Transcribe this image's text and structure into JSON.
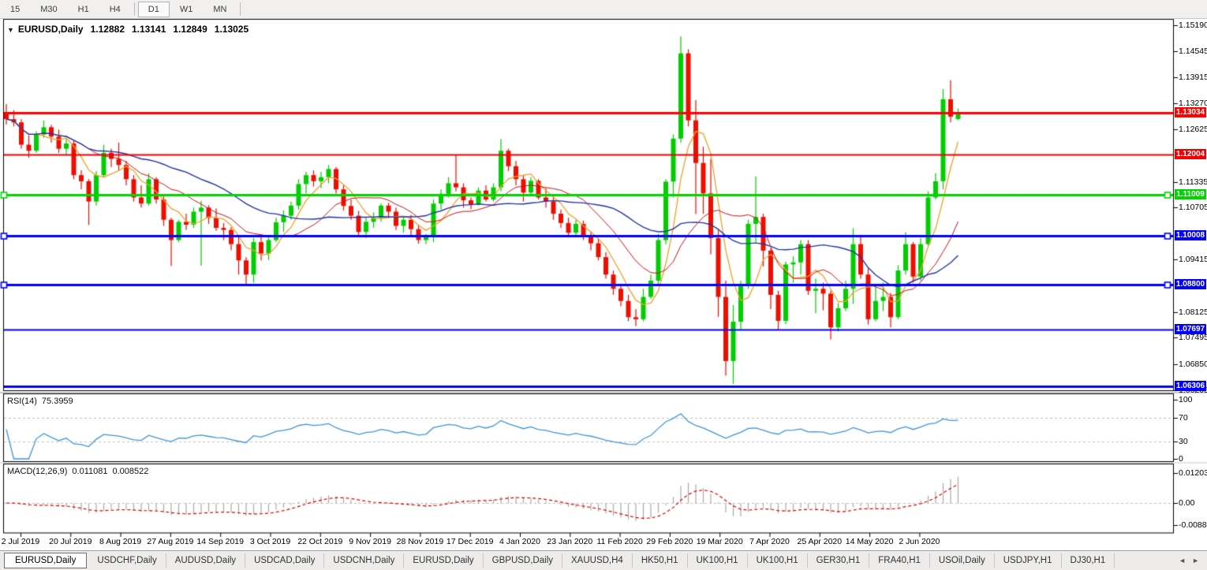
{
  "toolbar": {
    "groups": [
      [
        "15",
        "M30",
        "H1",
        "H4"
      ],
      [
        "D1",
        "W1",
        "MN"
      ]
    ],
    "active": "D1"
  },
  "window": {
    "collapse_glyph": "▼"
  },
  "tabs": {
    "items": [
      "EURUSD,Daily",
      "USDCHF,Daily",
      "AUDUSD,Daily",
      "USDCAD,Daily",
      "USDCNH,Daily",
      "EURUSD,Daily",
      "GBPUSD,Daily",
      "XAUUSD,H4",
      "HK50,H1",
      "UK100,H1",
      "UK100,H1",
      "GER30,H1",
      "FRA40,H1",
      "USOil,Daily",
      "USDJPY,H1",
      "DJ30,H1"
    ],
    "active_index": 0,
    "nav_left": "◄",
    "nav_right": "►"
  },
  "chart_data": {
    "type": "candlestick",
    "title": "EURUSD,Daily",
    "current_bar": {
      "open": "1.12882",
      "high": "1.13141",
      "low": "1.12849",
      "close": "1.13025"
    },
    "ylim": [
      1.062,
      1.1531
    ],
    "price_axis_ticks": [
      "1.15190",
      "1.14545",
      "1.13915",
      "1.13270",
      "1.12625",
      "1.11335",
      "1.10705",
      "1.09415",
      "1.08125",
      "1.07495",
      "1.06850",
      "1.06205"
    ],
    "x_axis_dates": [
      "2 Jul 2019",
      "20 Jul 2019",
      "8 Aug 2019",
      "27 Aug 2019",
      "14 Sep 2019",
      "3 Oct 2019",
      "22 Oct 2019",
      "9 Nov 2019",
      "28 Nov 2019",
      "17 Dec 2019",
      "4 Jan 2020",
      "23 Jan 2020",
      "11 Feb 2020",
      "29 Feb 2020",
      "19 Mar 2020",
      "7 Apr 2020",
      "25 Apr 2020",
      "14 May 2020",
      "2 Jun 2020"
    ],
    "horizontal_levels": [
      {
        "label": "1.13034",
        "color": "#FF0000",
        "width": 3,
        "handles": false
      },
      {
        "label": "1.12004",
        "color": "#F20000",
        "width": 2,
        "handles": false
      },
      {
        "label": "1.11009",
        "color": "#00D500",
        "width": 3,
        "handles": true
      },
      {
        "label": "1.10008",
        "color": "#0000FF",
        "width": 3,
        "handles": true
      },
      {
        "label": "1.08800",
        "color": "#0000FF",
        "width": 3,
        "handles": true
      },
      {
        "label": "1.07697",
        "color": "#0000FF",
        "width": 2,
        "handles": false
      },
      {
        "label": "1.06306",
        "color": "#0000FF",
        "width": 3,
        "handles": false
      }
    ],
    "moving_averages": [
      {
        "period": 5,
        "color": "#F0A029",
        "width": 1.3
      },
      {
        "period": 12,
        "color": "#CC1111",
        "width": 1
      },
      {
        "period": 25,
        "color": "#2233AA",
        "width": 1.4
      }
    ],
    "indicators": {
      "rsi": {
        "label": "RSI(14)",
        "value": "75.3959",
        "axis_ticks": [
          "100",
          "70",
          "30",
          "0"
        ],
        "upper_level": 70,
        "lower_level": 30,
        "color": "#3E95D8"
      },
      "macd": {
        "label": "MACD(12,26,9)",
        "value_main": "0.011081",
        "value_signal": "0.008522",
        "axis_ticks": [
          "0.012031",
          "0.00",
          "-0.00888"
        ],
        "hist_color": "#A9A9A9",
        "signal_color": "#DD0000"
      }
    },
    "colors": {
      "bull": "#00CE00",
      "bear": "#EE0E00",
      "grid": "#BFBFBF",
      "border": "#000000"
    },
    "candles_ohlc": [
      [
        1.13,
        1.1325,
        1.1275,
        1.1288
      ],
      [
        1.1288,
        1.131,
        1.127,
        1.128
      ],
      [
        1.128,
        1.1288,
        1.1215,
        1.1225
      ],
      [
        1.1225,
        1.1248,
        1.1193,
        1.121
      ],
      [
        1.121,
        1.1258,
        1.1205,
        1.125
      ],
      [
        1.125,
        1.1285,
        1.1242,
        1.1268
      ],
      [
        1.1268,
        1.1274,
        1.123,
        1.1245
      ],
      [
        1.1245,
        1.1262,
        1.1205,
        1.1215
      ],
      [
        1.1215,
        1.124,
        1.12,
        1.1228
      ],
      [
        1.1228,
        1.1235,
        1.114,
        1.115
      ],
      [
        1.115,
        1.1162,
        1.1115,
        1.1135
      ],
      [
        1.1135,
        1.114,
        1.1027,
        1.1085
      ],
      [
        1.1085,
        1.116,
        1.1075,
        1.115
      ],
      [
        1.115,
        1.1225,
        1.1145,
        1.1205
      ],
      [
        1.1205,
        1.1215,
        1.117,
        1.119
      ],
      [
        1.119,
        1.123,
        1.116,
        1.1175
      ],
      [
        1.1175,
        1.1185,
        1.1125,
        1.114
      ],
      [
        1.114,
        1.115,
        1.1085,
        1.1095
      ],
      [
        1.1095,
        1.1125,
        1.107,
        1.108
      ],
      [
        1.108,
        1.1155,
        1.1075,
        1.114
      ],
      [
        1.114,
        1.1145,
        1.108,
        1.109
      ],
      [
        1.109,
        1.1098,
        1.1025,
        1.104
      ],
      [
        1.104,
        1.1045,
        1.0926,
        1.099
      ],
      [
        1.099,
        1.104,
        1.0985,
        1.1035
      ],
      [
        1.1035,
        1.1055,
        1.1015,
        1.1028
      ],
      [
        1.1028,
        1.107,
        1.102,
        1.106
      ],
      [
        1.106,
        1.1087,
        1.0927,
        1.107
      ],
      [
        1.107,
        1.1076,
        1.103,
        1.1045
      ],
      [
        1.1045,
        1.1068,
        1.1013,
        1.102
      ],
      [
        1.102,
        1.1032,
        1.099,
        1.1015
      ],
      [
        1.1015,
        1.1022,
        1.0965,
        1.098
      ],
      [
        1.098,
        1.0999,
        1.0905,
        1.094
      ],
      [
        1.094,
        1.0948,
        1.0879,
        1.0905
      ],
      [
        1.0905,
        1.0995,
        1.0885,
        1.0985
      ],
      [
        1.0985,
        1.0998,
        1.094,
        1.0957
      ],
      [
        1.0957,
        1.1,
        1.0941,
        1.099
      ],
      [
        1.099,
        1.1045,
        1.0985,
        1.1034
      ],
      [
        1.1034,
        1.1063,
        1.101,
        1.105
      ],
      [
        1.105,
        1.1085,
        1.104,
        1.1075
      ],
      [
        1.1075,
        1.114,
        1.1065,
        1.1128
      ],
      [
        1.1128,
        1.1158,
        1.1105,
        1.115
      ],
      [
        1.115,
        1.1162,
        1.1122,
        1.1135
      ],
      [
        1.1135,
        1.1158,
        1.1118,
        1.1145
      ],
      [
        1.1145,
        1.1175,
        1.113,
        1.1165
      ],
      [
        1.1165,
        1.117,
        1.1105,
        1.1115
      ],
      [
        1.1115,
        1.1125,
        1.1063,
        1.1074
      ],
      [
        1.1074,
        1.109,
        1.104,
        1.105
      ],
      [
        1.105,
        1.1062,
        1.1,
        1.101
      ],
      [
        1.101,
        1.1045,
        1.0995,
        1.1035
      ],
      [
        1.1035,
        1.1058,
        1.102,
        1.1045
      ],
      [
        1.1045,
        1.108,
        1.1035,
        1.1075
      ],
      [
        1.1075,
        1.1082,
        1.1045,
        1.106
      ],
      [
        1.106,
        1.107,
        1.1015,
        1.1025
      ],
      [
        1.1025,
        1.1048,
        1.1008,
        1.104
      ],
      [
        1.104,
        1.1052,
        1.1002,
        1.1017
      ],
      [
        1.1017,
        1.1028,
        1.0981,
        1.099
      ],
      [
        1.099,
        1.1005,
        1.098,
        1.0998
      ],
      [
        1.0998,
        1.109,
        1.0985,
        1.108
      ],
      [
        1.108,
        1.1115,
        1.1065,
        1.1104
      ],
      [
        1.1104,
        1.1145,
        1.1095,
        1.113
      ],
      [
        1.113,
        1.1199,
        1.111,
        1.112
      ],
      [
        1.112,
        1.113,
        1.107,
        1.1088
      ],
      [
        1.1088,
        1.1095,
        1.1066,
        1.1078
      ],
      [
        1.1078,
        1.112,
        1.1075,
        1.1112
      ],
      [
        1.1112,
        1.1125,
        1.1085,
        1.109
      ],
      [
        1.109,
        1.113,
        1.1085,
        1.112
      ],
      [
        1.112,
        1.1239,
        1.111,
        1.121
      ],
      [
        1.121,
        1.1215,
        1.116,
        1.1172
      ],
      [
        1.1172,
        1.1185,
        1.1125,
        1.114
      ],
      [
        1.114,
        1.115,
        1.1085,
        1.1107
      ],
      [
        1.1107,
        1.1145,
        1.11,
        1.1136
      ],
      [
        1.1136,
        1.114,
        1.109,
        1.1095
      ],
      [
        1.1095,
        1.1118,
        1.107,
        1.1085
      ],
      [
        1.1085,
        1.1098,
        1.104,
        1.1055
      ],
      [
        1.1055,
        1.1065,
        1.102,
        1.1032
      ],
      [
        1.1032,
        1.1045,
        1.0998,
        1.1008
      ],
      [
        1.1008,
        1.104,
        1.1,
        1.103
      ],
      [
        1.103,
        1.1038,
        1.099,
        1.1
      ],
      [
        1.1,
        1.101,
        1.0965,
        1.0982
      ],
      [
        1.0982,
        1.0995,
        1.094,
        1.0948
      ],
      [
        1.0948,
        1.096,
        1.0895,
        1.0905
      ],
      [
        1.0905,
        1.0915,
        1.0855,
        1.087
      ],
      [
        1.087,
        1.088,
        1.0827,
        1.084
      ],
      [
        1.084,
        1.0855,
        1.079,
        1.08
      ],
      [
        1.08,
        1.082,
        1.0778,
        1.0795
      ],
      [
        1.0795,
        1.087,
        1.079,
        1.085
      ],
      [
        1.085,
        1.0905,
        1.0845,
        1.089
      ],
      [
        1.089,
        1.1005,
        1.088,
        1.099
      ],
      [
        1.099,
        1.114,
        1.098,
        1.1134
      ],
      [
        1.1134,
        1.125,
        1.1095,
        1.124
      ],
      [
        1.124,
        1.1492,
        1.123,
        1.145
      ],
      [
        1.145,
        1.146,
        1.127,
        1.1285
      ],
      [
        1.1285,
        1.1335,
        1.1054,
        1.118
      ],
      [
        1.118,
        1.122,
        1.1055,
        1.1105
      ],
      [
        1.1105,
        1.119,
        1.0955,
        1.0995
      ],
      [
        1.0995,
        1.1015,
        1.0801,
        1.085
      ],
      [
        1.085,
        1.089,
        1.0656,
        1.0692
      ],
      [
        1.0692,
        1.083,
        1.0636,
        1.0789
      ],
      [
        1.0789,
        1.089,
        1.077,
        1.0879
      ],
      [
        1.0879,
        1.104,
        1.087,
        1.103
      ],
      [
        1.103,
        1.1147,
        1.0985,
        1.1047
      ],
      [
        1.1047,
        1.1055,
        1.0925,
        1.0964
      ],
      [
        1.0964,
        1.097,
        1.082,
        1.0855
      ],
      [
        1.0855,
        1.0865,
        1.0768,
        1.0791
      ],
      [
        1.0791,
        1.0937,
        1.0783,
        1.093
      ],
      [
        1.093,
        1.095,
        1.0885,
        1.0935
      ],
      [
        1.0935,
        1.099,
        1.0905,
        1.098
      ],
      [
        1.098,
        1.099,
        1.0855,
        1.0865
      ],
      [
        1.0865,
        1.0895,
        1.081,
        1.087
      ],
      [
        1.087,
        1.0885,
        1.0817,
        1.0858
      ],
      [
        1.0858,
        1.0865,
        1.0745,
        1.0775
      ],
      [
        1.0775,
        1.0835,
        1.0765,
        1.0822
      ],
      [
        1.0822,
        1.089,
        1.0815,
        1.087
      ],
      [
        1.087,
        1.1019,
        1.0833,
        1.098
      ],
      [
        1.098,
        1.0998,
        1.0895,
        1.0905
      ],
      [
        1.0905,
        1.092,
        1.0782,
        1.0795
      ],
      [
        1.0795,
        1.0876,
        1.079,
        1.084
      ],
      [
        1.084,
        1.0885,
        1.0815,
        1.085
      ],
      [
        1.085,
        1.086,
        1.0775,
        1.08
      ],
      [
        1.08,
        1.0928,
        1.0795,
        1.0915
      ],
      [
        1.0915,
        1.1009,
        1.0905,
        1.098
      ],
      [
        1.098,
        1.0985,
        1.0885,
        1.09
      ],
      [
        1.09,
        1.0995,
        1.089,
        1.098
      ],
      [
        1.098,
        1.111,
        1.0975,
        1.1095
      ],
      [
        1.1095,
        1.1155,
        1.109,
        1.1135
      ],
      [
        1.1135,
        1.1362,
        1.1115,
        1.1337
      ],
      [
        1.1337,
        1.1384,
        1.128,
        1.1294
      ],
      [
        1.12882,
        1.13141,
        1.12849,
        1.13025
      ]
    ]
  }
}
